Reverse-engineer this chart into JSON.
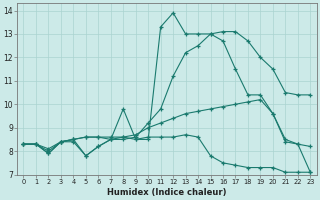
{
  "xlabel": "Humidex (Indice chaleur)",
  "bg_color": "#cceae8",
  "grid_color": "#aad4d0",
  "line_color": "#1a7a6e",
  "xlim": [
    -0.5,
    23.5
  ],
  "ylim": [
    7.0,
    14.3
  ],
  "xticks": [
    0,
    1,
    2,
    3,
    4,
    5,
    6,
    7,
    8,
    9,
    10,
    11,
    12,
    13,
    14,
    15,
    16,
    17,
    18,
    19,
    20,
    21,
    22,
    23
  ],
  "yticks": [
    7,
    8,
    9,
    10,
    11,
    12,
    13,
    14
  ],
  "line1_x": [
    0,
    1,
    2,
    3,
    4,
    5,
    6,
    7,
    8,
    9,
    10,
    11,
    12,
    13,
    14,
    15,
    16,
    17,
    18,
    19,
    20,
    21,
    22,
    23
  ],
  "line1_y": [
    8.3,
    8.3,
    7.9,
    8.4,
    8.5,
    7.8,
    8.2,
    8.5,
    9.8,
    8.5,
    8.5,
    13.3,
    13.9,
    13.0,
    13.0,
    13.0,
    12.7,
    11.5,
    10.4,
    10.4,
    9.6,
    8.4,
    8.3,
    7.1
  ],
  "line2_x": [
    0,
    1,
    2,
    3,
    4,
    5,
    6,
    7,
    8,
    9,
    10,
    11,
    12,
    13,
    14,
    15,
    16,
    17,
    18,
    19,
    20,
    21,
    22,
    23
  ],
  "line2_y": [
    8.3,
    8.3,
    8.0,
    8.4,
    8.5,
    8.6,
    8.6,
    8.5,
    8.5,
    8.6,
    9.2,
    9.8,
    11.2,
    12.2,
    12.5,
    13.0,
    13.1,
    13.1,
    12.7,
    12.0,
    11.5,
    10.5,
    10.4,
    10.4
  ],
  "line3_x": [
    0,
    1,
    2,
    3,
    4,
    5,
    6,
    7,
    8,
    9,
    10,
    11,
    12,
    13,
    14,
    15,
    16,
    17,
    18,
    19,
    20,
    21,
    22,
    23
  ],
  "line3_y": [
    8.3,
    8.3,
    8.1,
    8.4,
    8.5,
    8.6,
    8.6,
    8.6,
    8.6,
    8.7,
    9.0,
    9.2,
    9.4,
    9.6,
    9.7,
    9.8,
    9.9,
    10.0,
    10.1,
    10.2,
    9.6,
    8.5,
    8.3,
    8.2
  ],
  "line4_x": [
    0,
    1,
    2,
    3,
    4,
    5,
    6,
    7,
    8,
    9,
    10,
    11,
    12,
    13,
    14,
    15,
    16,
    17,
    18,
    19,
    20,
    21,
    22,
    23
  ],
  "line4_y": [
    8.3,
    8.3,
    7.9,
    8.4,
    8.4,
    7.8,
    8.2,
    8.5,
    8.6,
    8.5,
    8.6,
    8.6,
    8.6,
    8.7,
    8.6,
    7.8,
    7.5,
    7.4,
    7.3,
    7.3,
    7.3,
    7.1,
    7.1,
    7.1
  ]
}
